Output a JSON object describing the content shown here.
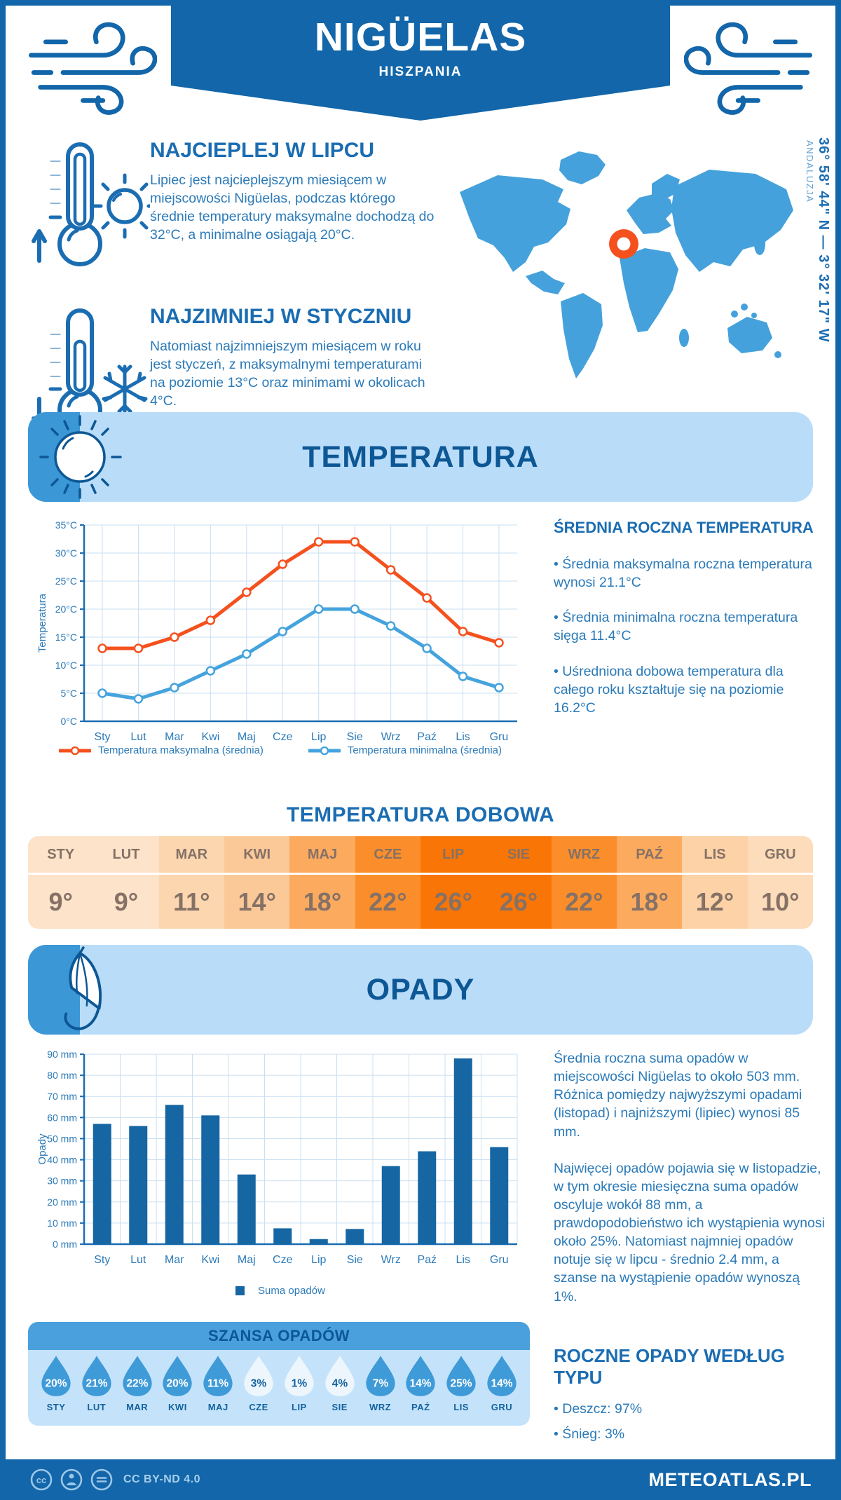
{
  "meta": {
    "location": "NIGÜELAS",
    "country": "HISZPANIA",
    "coordinates": "36° 58' 44\" N — 3° 32' 17\" W",
    "region": "ANDALUZJA"
  },
  "intro": {
    "warm": {
      "title": "NAJCIEPLEJ W LIPCU",
      "text": "Lipiec jest najcieplejszym miesiącem w miejscowości Nigüelas, podczas którego średnie temperatury maksymalne dochodzą do 32°C, a minimalne osiągają 20°C."
    },
    "cold": {
      "title": "NAJZIMNIEJ W STYCZNIU",
      "text": "Natomiast najzimniejszym miesiącem w roku jest styczeń, z maksymalnymi temperaturami na poziomie 13°C oraz minimami w okolicach 4°C."
    }
  },
  "sections": {
    "temperature_title": "TEMPERATURA",
    "precipitation_title": "OPADY",
    "daily_title": "TEMPERATURA DOBOWA",
    "chance_title": "SZANSA OPADÓW"
  },
  "annual_temp": {
    "heading": "ŚREDNIA ROCZNA TEMPERATURA",
    "bullets": [
      "• Średnia maksymalna roczna temperatura wynosi 21.1°C",
      "• Średnia minimalna roczna temperatura sięga 11.4°C",
      "• Uśredniona dobowa temperatura dla całego roku kształtuje się na poziomie 16.2°C"
    ]
  },
  "daily_table": {
    "months": [
      "STY",
      "LUT",
      "MAR",
      "KWI",
      "MAJ",
      "CZE",
      "LIP",
      "SIE",
      "WRZ",
      "PAŹ",
      "LIS",
      "GRU"
    ],
    "values": [
      "9°",
      "9°",
      "11°",
      "14°",
      "18°",
      "22°",
      "26°",
      "26°",
      "22°",
      "18°",
      "12°",
      "10°"
    ],
    "colors": [
      "#fce3c9",
      "#fce3c9",
      "#fbd6af",
      "#fbc998",
      "#fbaa5e",
      "#fb8e2b",
      "#f97506",
      "#f97506",
      "#fb8e2b",
      "#fbaa5e",
      "#fcd2a6",
      "#fcdcba"
    ]
  },
  "rain_text": {
    "p1": "Średnia roczna suma opadów w miejscowości Nigüelas to około 503 mm. Różnica pomiędzy najwyższymi opadami (listopad) i najniższymi (lipiec) wynosi 85 mm.",
    "p2": "Najwięcej opadów pojawia się w listopadzie, w tym okresie miesięczna suma opadów oscyluje wokół 88 mm, a prawdopodobieństwo ich wystąpienia wynosi około 25%. Natomiast najmniej opadów notuje się w lipcu - średnio 2.4 mm, a szanse na wystąpienie opadów wynoszą 1%.",
    "type_heading": "ROCZNE OPADY WEDŁUG TYPU",
    "type_bullets": [
      "• Deszcz: 97%",
      "• Śnieg: 3%"
    ]
  },
  "chance": {
    "months": [
      "STY",
      "LUT",
      "MAR",
      "KWI",
      "MAJ",
      "CZE",
      "LIP",
      "SIE",
      "WRZ",
      "PAŹ",
      "LIS",
      "GRU"
    ],
    "values": [
      "20%",
      "21%",
      "22%",
      "20%",
      "11%",
      "3%",
      "1%",
      "4%",
      "7%",
      "14%",
      "25%",
      "14%"
    ],
    "light": [
      false,
      false,
      false,
      false,
      false,
      true,
      true,
      true,
      false,
      false,
      false,
      false
    ],
    "drop_color": "#3f9ad8",
    "drop_light_color": "#edf6fd"
  },
  "footer": {
    "license": "CC BY-ND 4.0",
    "site": "METEOATLAS.PL"
  },
  "colors": {
    "primary": "#1266a9",
    "map_blue": "#45a1db",
    "marker_orange": "#f4511e",
    "banner_bg": "#b9dcf9",
    "banner_strip": "#3b97d6"
  },
  "chart_data": [
    {
      "type": "line",
      "categories": [
        "Sty",
        "Lut",
        "Mar",
        "Kwi",
        "Maj",
        "Cze",
        "Lip",
        "Sie",
        "Wrz",
        "Paź",
        "Lis",
        "Gru"
      ],
      "series": [
        {
          "name": "Temperatura maksymalna (średnia)",
          "color": "#f4511e",
          "values": [
            13,
            13,
            15,
            18,
            23,
            28,
            32,
            32,
            27,
            22,
            16,
            14
          ]
        },
        {
          "name": "Temperatura minimalna (średnia)",
          "color": "#45a3dd",
          "values": [
            5,
            4,
            6,
            9,
            12,
            16,
            20,
            20,
            17,
            13,
            8,
            6
          ]
        }
      ],
      "xlabel": "",
      "ylabel": "Temperatura",
      "ylim": [
        0,
        35
      ],
      "ytick_step": 5,
      "ytick_suffix": "°C",
      "grid": true,
      "legend_position": "bottom"
    },
    {
      "type": "bar",
      "categories": [
        "Sty",
        "Lut",
        "Mar",
        "Kwi",
        "Maj",
        "Cze",
        "Lip",
        "Sie",
        "Wrz",
        "Paź",
        "Lis",
        "Gru"
      ],
      "series": [
        {
          "name": "Suma opadów",
          "color": "#1566a3",
          "values": [
            57,
            56,
            66,
            61,
            33,
            7.5,
            2.4,
            7.2,
            37,
            44,
            88,
            46
          ]
        }
      ],
      "xlabel": "",
      "ylabel": "Opady",
      "ylim": [
        0,
        90
      ],
      "ytick_step": 10,
      "ytick_suffix": " mm",
      "grid": true,
      "legend_position": "bottom"
    }
  ]
}
